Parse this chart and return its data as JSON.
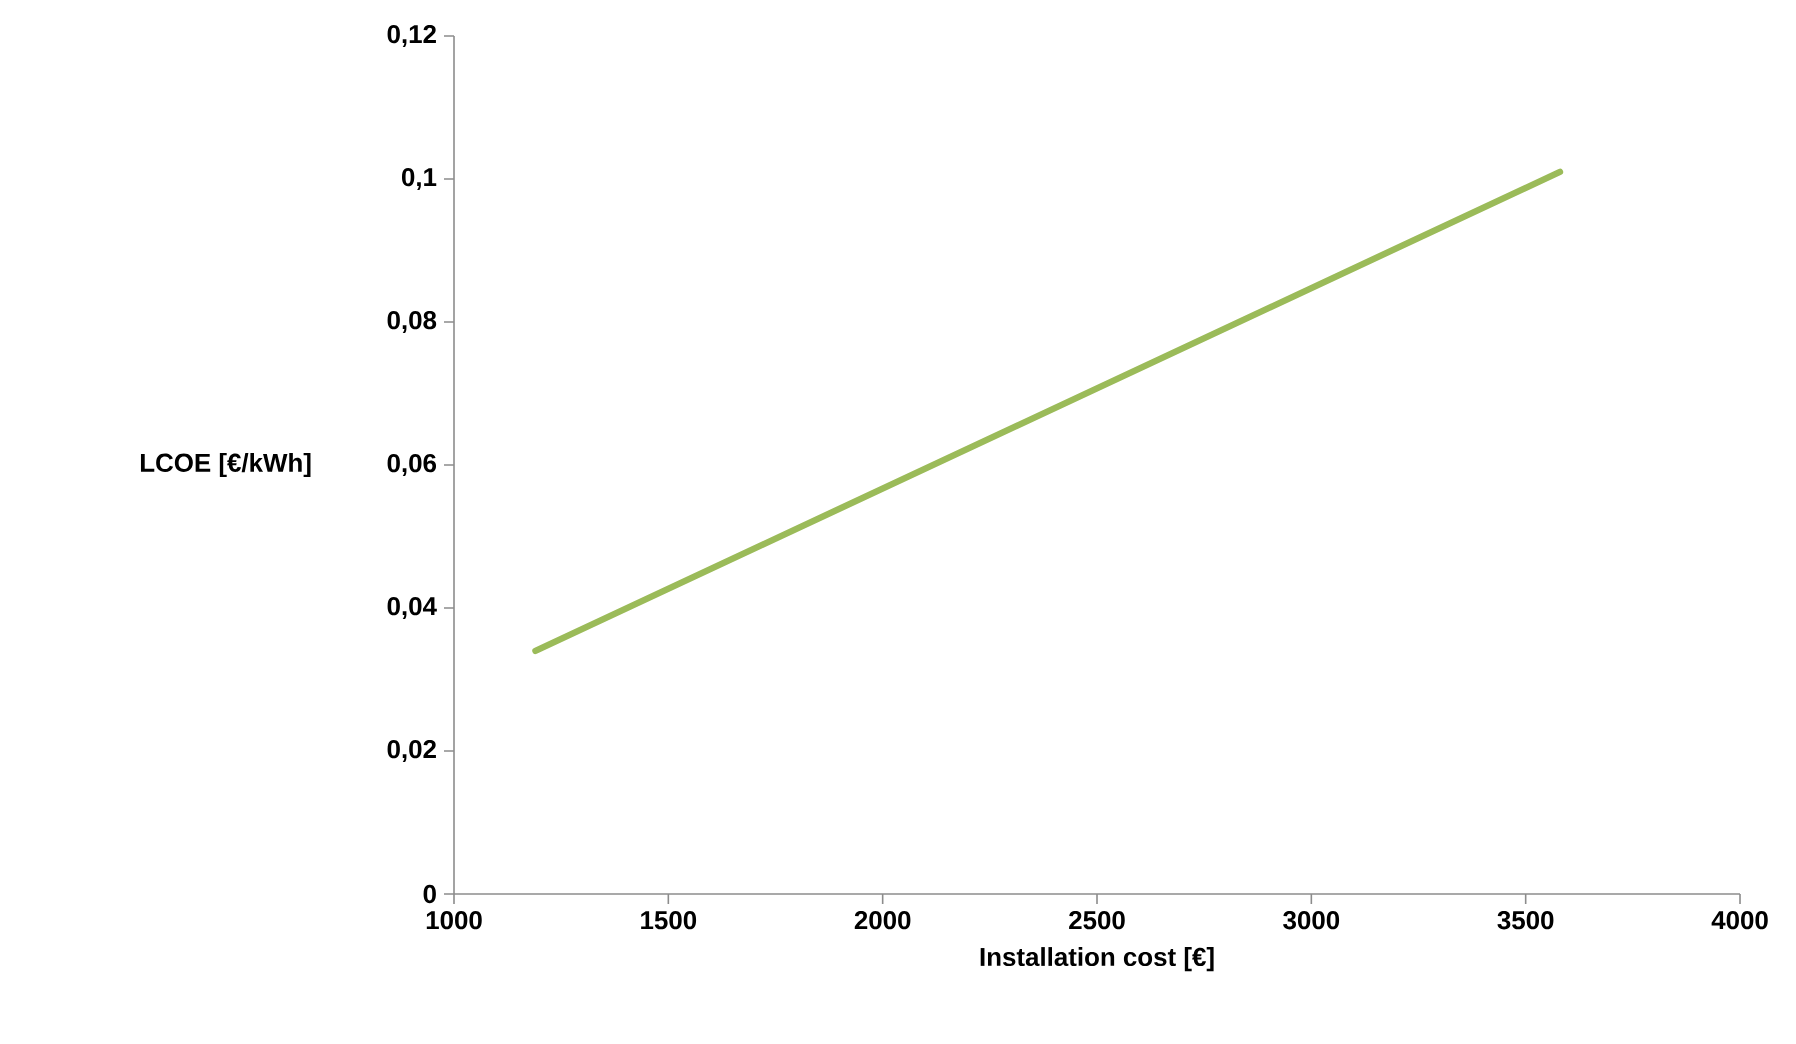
{
  "chart_data": {
    "type": "line",
    "xlabel": "Installation cost [€]",
    "ylabel": "LCOE [€/kWh]",
    "series": [
      {
        "color": "#9bbb59",
        "x": [
          1190,
          3580
        ],
        "values": [
          0.034,
          0.101
        ]
      }
    ],
    "xlim": [
      1000,
      4000
    ],
    "xticks": [
      1000,
      1500,
      2000,
      2500,
      3000,
      3500,
      4000
    ],
    "ylim": [
      0,
      0.12
    ],
    "yticks": [
      0,
      {
        "value": 0.02,
        "label": "0,02"
      },
      {
        "value": 0.04,
        "label": "0,04"
      },
      {
        "value": 0.06,
        "label": "0,06"
      },
      {
        "value": 0.08,
        "label": "0,08"
      },
      {
        "value": 0.1,
        "label": "0,1"
      },
      {
        "value": 0.12,
        "label": "0,12"
      }
    ]
  }
}
